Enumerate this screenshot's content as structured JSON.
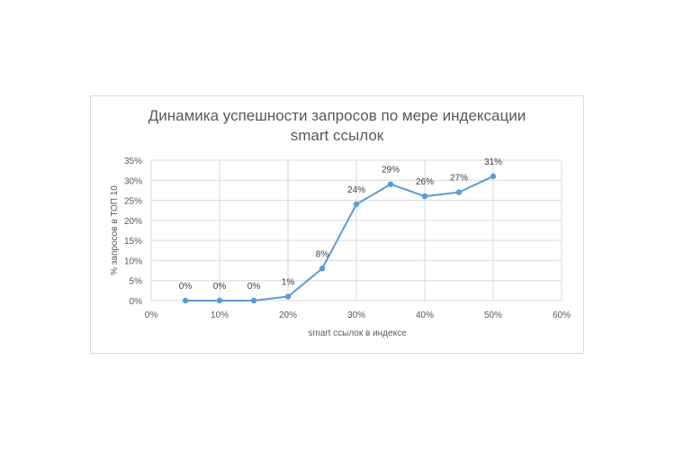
{
  "chart_data": {
    "type": "line",
    "title_line1": "Динамика успешности запросов по мере индексации",
    "title_line2": "smart ссылок",
    "xlabel": "smart ссылок в индексе",
    "ylabel": "% запросов в ТОП 10",
    "xlim": [
      0,
      0.6
    ],
    "ylim": [
      0,
      0.35
    ],
    "x_ticks": [
      "0%",
      "10%",
      "20%",
      "30%",
      "40%",
      "50%",
      "60%"
    ],
    "y_ticks": [
      "0%",
      "5%",
      "10%",
      "15%",
      "20%",
      "25%",
      "30%",
      "35%"
    ],
    "grid": true,
    "legend": "none",
    "line_color": "#5b9bd5",
    "series": [
      {
        "x": [
          0.05,
          0.1,
          0.15,
          0.2,
          0.25,
          0.3,
          0.35,
          0.4,
          0.45,
          0.5
        ],
        "values": [
          0.0,
          0.0,
          0.0,
          0.01,
          0.08,
          0.24,
          0.29,
          0.26,
          0.27,
          0.31
        ],
        "labels": [
          "0%",
          "0%",
          "0%",
          "1%",
          "8%",
          "24%",
          "29%",
          "26%",
          "27%",
          "31%"
        ]
      }
    ]
  }
}
